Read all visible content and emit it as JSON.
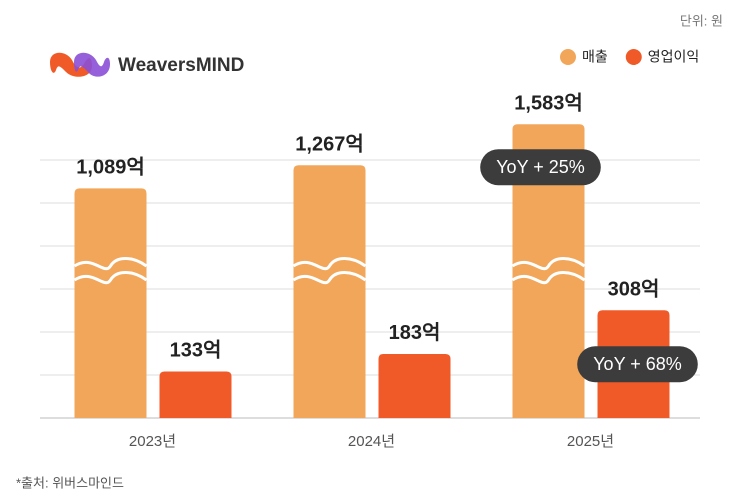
{
  "chart_data": {
    "type": "bar",
    "brand": "WeaversMIND",
    "unit_note": "단위: 원",
    "source": "*출처: 위버스마인드",
    "categories": [
      "2023년",
      "2024년",
      "2025년"
    ],
    "series": [
      {
        "name": "매출",
        "color": "#f2a65a",
        "values": [
          1089,
          1267,
          1583
        ],
        "value_labels": [
          "1,089억",
          "1,267억",
          "1,583억"
        ]
      },
      {
        "name": "영업이익",
        "color": "#f05a28",
        "values": [
          133,
          183,
          308
        ],
        "value_labels": [
          "133억",
          "183억",
          "308억"
        ]
      }
    ],
    "annotations": [
      {
        "text": "YoY + 25%",
        "series": 0,
        "index": 2
      },
      {
        "text": "YoY + 68%",
        "series": 1,
        "index": 2
      }
    ],
    "grid": true
  }
}
